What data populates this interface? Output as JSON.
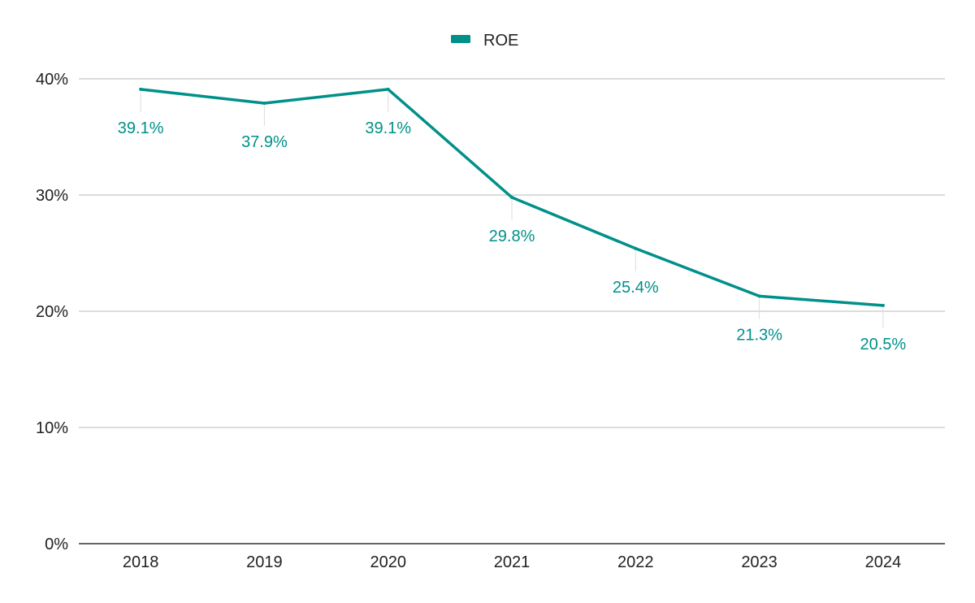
{
  "chart_data": {
    "type": "line",
    "title": "",
    "xlabel": "",
    "ylabel": "",
    "categories": [
      "2018",
      "2019",
      "2020",
      "2021",
      "2022",
      "2023",
      "2024"
    ],
    "series": [
      {
        "name": "ROE",
        "color": "#00908A",
        "values": [
          39.1,
          37.9,
          39.1,
          29.8,
          25.4,
          21.3,
          20.5
        ],
        "labels": [
          "39.1%",
          "37.9%",
          "39.1%",
          "29.8%",
          "25.4%",
          "21.3%",
          "20.5%"
        ]
      }
    ],
    "ylim": [
      0,
      40
    ],
    "yticks": [
      0,
      10,
      20,
      30,
      40
    ],
    "ytick_labels": [
      "0%",
      "10%",
      "20%",
      "30%",
      "40%"
    ],
    "grid": true,
    "legend_position": "top-center"
  }
}
